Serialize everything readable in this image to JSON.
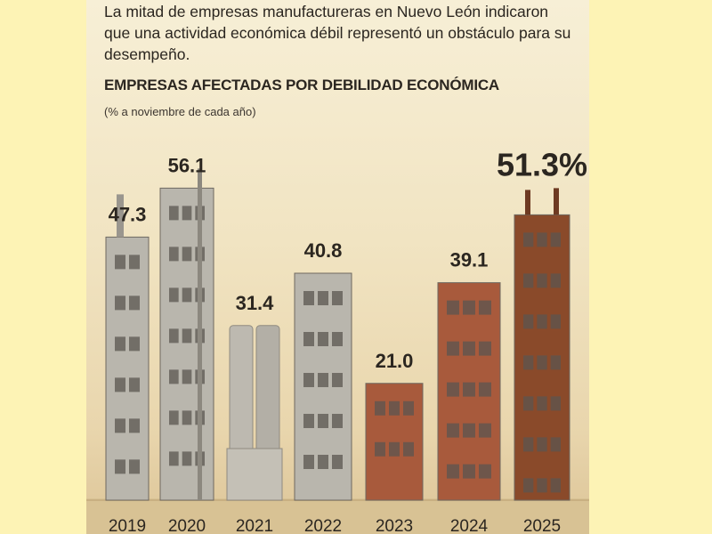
{
  "header": {
    "lead": "La mitad de empresas manufactureras en Nuevo León indicaron que una actividad económica débil representó un obstáculo para su desempeño."
  },
  "chart_data": {
    "type": "bar",
    "title": "EMPRESAS AFECTADAS POR DEBILIDAD ECONÓMICA",
    "subtitle": "(% a noviembre de cada año)",
    "categories": [
      "2019",
      "2020",
      "2021",
      "2022",
      "2023",
      "2024",
      "2025"
    ],
    "values": [
      47.3,
      56.1,
      31.4,
      40.8,
      21.0,
      39.1,
      51.3
    ],
    "value_labels": [
      "47.3",
      "56.1",
      "31.4",
      "40.8",
      "21.0",
      "39.1",
      "51.3%"
    ],
    "highlight": "2025",
    "colors": {
      "gray_building": "#b9b6ad",
      "brick_building": "#a85a3c",
      "rust_building": "#8a4a2a",
      "window": "#5b5650",
      "label": "#2b2620"
    }
  }
}
